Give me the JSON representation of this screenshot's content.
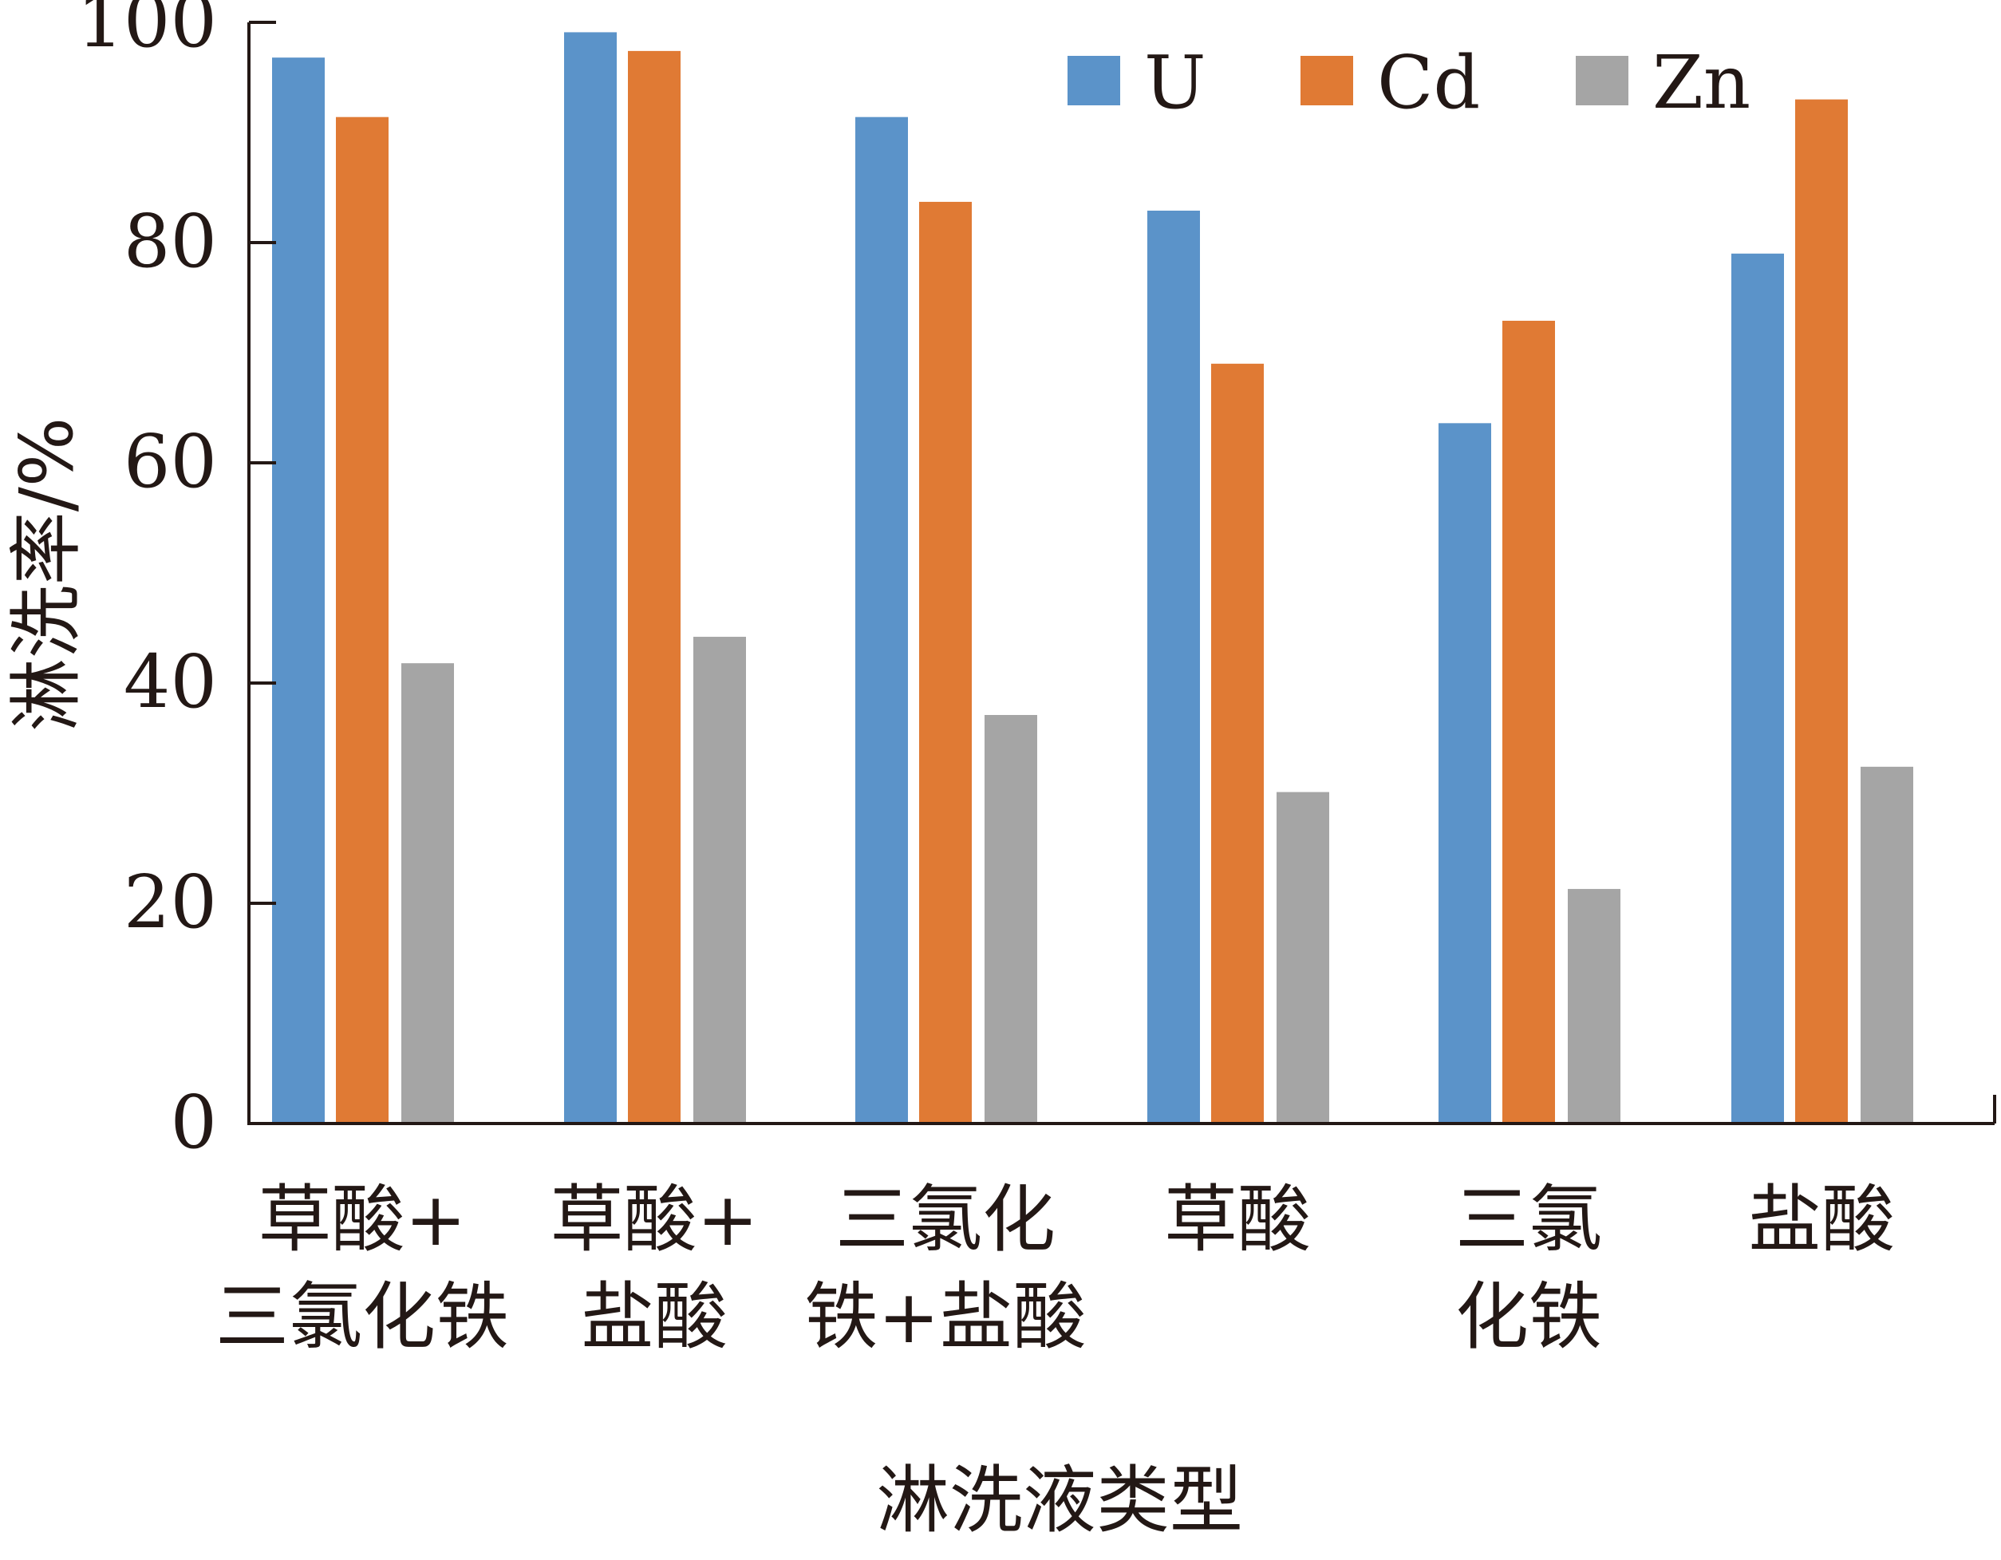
{
  "chart_data": {
    "type": "bar",
    "title": "",
    "xlabel": "淋洗液类型",
    "ylabel": "淋洗率/%",
    "ylim": [
      0,
      100
    ],
    "yticks": [
      0,
      20,
      40,
      60,
      80,
      100
    ],
    "grid": false,
    "legend_position": "top-right",
    "categories": [
      [
        "草酸+",
        "三氯化铁"
      ],
      [
        "草酸+",
        "盐酸"
      ],
      [
        "三氯化",
        "铁+盐酸"
      ],
      [
        "草酸"
      ],
      [
        "三氯",
        "化铁"
      ],
      [
        "盐酸"
      ]
    ],
    "series": [
      {
        "name": "U",
        "color": "#5b93c9",
        "values": [
          96.8,
          99.1,
          91.4,
          82.9,
          63.6,
          79.0
        ]
      },
      {
        "name": "Cd",
        "color": "#e07a34",
        "values": [
          91.4,
          97.4,
          83.7,
          69.0,
          72.9,
          93.0
        ]
      },
      {
        "name": "Zn",
        "color": "#a5a5a5",
        "values": [
          41.8,
          44.2,
          37.1,
          30.1,
          21.3,
          32.4
        ]
      }
    ]
  }
}
